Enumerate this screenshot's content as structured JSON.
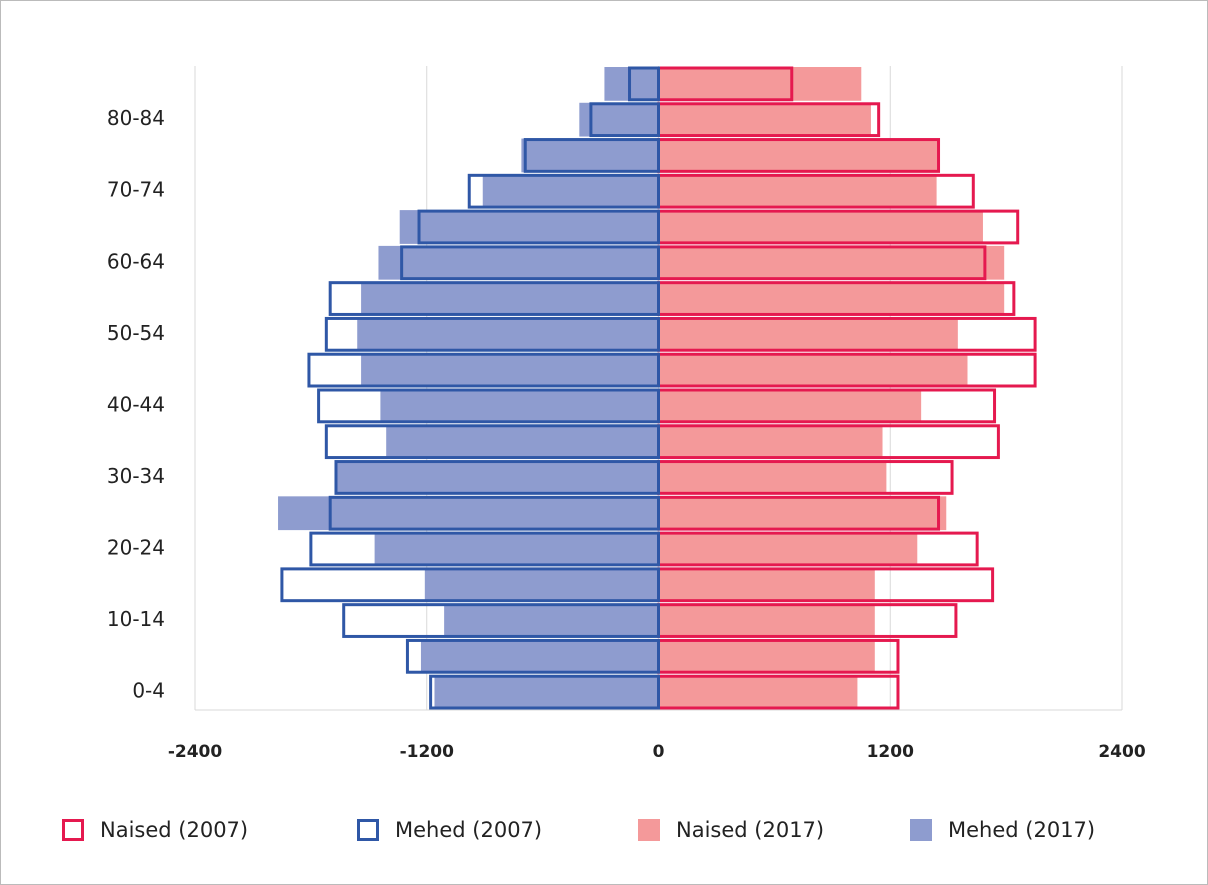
{
  "chart_data": {
    "type": "pyramid",
    "categories": [
      "0-4",
      null,
      "10-14",
      null,
      "20-24",
      null,
      "30-34",
      null,
      "40-44",
      null,
      "50-54",
      null,
      "60-64",
      null,
      "70-74",
      null,
      "80-84",
      null
    ],
    "series": [
      {
        "name": "Naised (2007)",
        "color": "#e5194f",
        "style": "outline",
        "values": [
          1240,
          1240,
          1540,
          1730,
          1650,
          1450,
          1520,
          1760,
          1740,
          1950,
          1950,
          1840,
          1690,
          1860,
          1630,
          1450,
          1140,
          690
        ]
      },
      {
        "name": "Mehed (2007)",
        "color": "#2f57a6",
        "style": "outline",
        "values": [
          -1180,
          -1300,
          -1630,
          -1950,
          -1800,
          -1700,
          -1670,
          -1720,
          -1760,
          -1810,
          -1720,
          -1700,
          -1330,
          -1240,
          -980,
          -690,
          -350,
          -150
        ]
      },
      {
        "name": "Naised (2017)",
        "color": "#f4999a",
        "style": "fill",
        "values": [
          1030,
          1120,
          1120,
          1120,
          1340,
          1490,
          1180,
          1160,
          1360,
          1600,
          1550,
          1790,
          1790,
          1680,
          1440,
          1450,
          1100,
          1050
        ]
      },
      {
        "name": "Mehed (2017)",
        "color": "#8e9ccf",
        "style": "fill",
        "values": [
          -1160,
          -1230,
          -1110,
          -1210,
          -1470,
          -1970,
          -1670,
          -1410,
          -1440,
          -1540,
          -1560,
          -1540,
          -1450,
          -1340,
          -910,
          -710,
          -410,
          -280
        ]
      }
    ],
    "xlim": [
      -2400,
      2400
    ],
    "xticks": [
      -2400,
      -1200,
      0,
      1200,
      2400
    ],
    "grid": true,
    "legend": "bottom"
  }
}
